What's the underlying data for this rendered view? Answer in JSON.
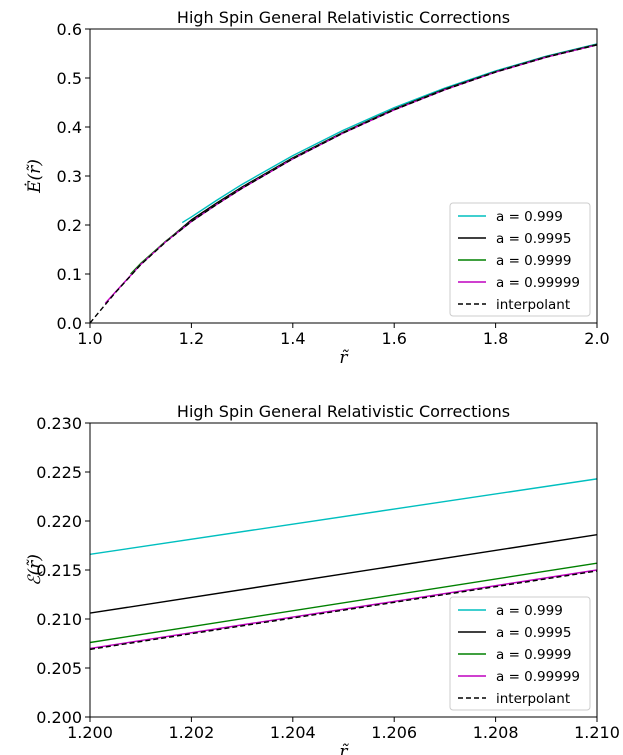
{
  "chart_data": [
    {
      "type": "line",
      "title": "High Spin General Relativistic Corrections",
      "xlabel": "r̃",
      "ylabel": "Ė(r̃)",
      "xlim": [
        1.0,
        2.0
      ],
      "ylim": [
        0.0,
        0.6
      ],
      "xticks": [
        1.0,
        1.2,
        1.4,
        1.6,
        1.8,
        2.0
      ],
      "yticks": [
        0.0,
        0.1,
        0.2,
        0.3,
        0.4,
        0.5,
        0.6
      ],
      "xtick_labels": [
        "1.0",
        "1.2",
        "1.4",
        "1.6",
        "1.8",
        "2.0"
      ],
      "ytick_labels": [
        "0.0",
        "0.1",
        "0.2",
        "0.3",
        "0.4",
        "0.5",
        "0.6"
      ],
      "legend_position": "lower-right",
      "grid": false,
      "series": [
        {
          "name": "a = 0.999",
          "color": "#00bfbf",
          "dash": "solid",
          "x": [
            1.182,
            1.2,
            1.25,
            1.3,
            1.4,
            1.5,
            1.6,
            1.7,
            1.8,
            1.9,
            2.0
          ],
          "y": [
            0.205,
            0.2165,
            0.2505,
            0.283,
            0.3415,
            0.3935,
            0.4395,
            0.4795,
            0.5145,
            0.5445,
            0.5695
          ]
        },
        {
          "name": "a = 0.9995",
          "color": "#000000",
          "dash": "solid",
          "x": [
            1.14,
            1.16,
            1.2,
            1.25,
            1.3,
            1.4,
            1.5,
            1.6,
            1.7,
            1.8,
            1.9,
            2.0
          ],
          "y": [
            0.158,
            0.1755,
            0.2105,
            0.245,
            0.2775,
            0.337,
            0.3895,
            0.4365,
            0.4775,
            0.513,
            0.5435,
            0.5685
          ]
        },
        {
          "name": "a = 0.9999",
          "color": "#008000",
          "dash": "solid",
          "x": [
            1.08,
            1.1,
            1.15,
            1.2,
            1.25,
            1.3,
            1.4,
            1.5,
            1.6,
            1.7,
            1.8,
            1.9,
            2.0
          ],
          "y": [
            0.1,
            0.1215,
            0.1675,
            0.2075,
            0.2425,
            0.2755,
            0.3355,
            0.3885,
            0.4355,
            0.4765,
            0.5125,
            0.543,
            0.568
          ]
        },
        {
          "name": "a = 0.99999",
          "color": "#bf00bf",
          "dash": "solid",
          "x": [
            1.03,
            1.05,
            1.1,
            1.15,
            1.2,
            1.25,
            1.3,
            1.4,
            1.5,
            1.6,
            1.7,
            1.8,
            1.9,
            2.0
          ],
          "y": [
            0.04,
            0.063,
            0.1195,
            0.1665,
            0.207,
            0.242,
            0.275,
            0.335,
            0.388,
            0.435,
            0.476,
            0.512,
            0.5425,
            0.5675
          ]
        },
        {
          "name": "interpolant",
          "color": "#000000",
          "dash": "dashed",
          "x": [
            1.0,
            1.02,
            1.05,
            1.1,
            1.15,
            1.2,
            1.25,
            1.3,
            1.4,
            1.5,
            1.6,
            1.7,
            1.8,
            1.9,
            2.0
          ],
          "y": [
            0.0,
            0.025,
            0.062,
            0.119,
            0.166,
            0.207,
            0.242,
            0.275,
            0.335,
            0.388,
            0.435,
            0.476,
            0.512,
            0.5425,
            0.5675
          ]
        }
      ]
    },
    {
      "type": "line",
      "title": "High Spin General Relativistic Corrections",
      "xlabel": "r̃",
      "ylabel": "ℰ(r̃)",
      "xlim": [
        1.2,
        1.21
      ],
      "ylim": [
        0.2,
        0.23
      ],
      "xticks": [
        1.2,
        1.202,
        1.204,
        1.206,
        1.208,
        1.21
      ],
      "yticks": [
        0.2,
        0.205,
        0.21,
        0.215,
        0.22,
        0.225,
        0.23
      ],
      "xtick_labels": [
        "1.200",
        "1.202",
        "1.204",
        "1.206",
        "1.208",
        "1.210"
      ],
      "ytick_labels": [
        "0.200",
        "0.205",
        "0.210",
        "0.215",
        "0.220",
        "0.225",
        "0.230"
      ],
      "legend_position": "lower-right",
      "grid": false,
      "series": [
        {
          "name": "a = 0.999",
          "color": "#00bfbf",
          "dash": "solid",
          "x": [
            1.2,
            1.21
          ],
          "y": [
            0.2166,
            0.2243
          ]
        },
        {
          "name": "a = 0.9995",
          "color": "#000000",
          "dash": "solid",
          "x": [
            1.2,
            1.21
          ],
          "y": [
            0.2106,
            0.2186
          ]
        },
        {
          "name": "a = 0.9999",
          "color": "#008000",
          "dash": "solid",
          "x": [
            1.2,
            1.21
          ],
          "y": [
            0.2076,
            0.2157
          ]
        },
        {
          "name": "a = 0.99999",
          "color": "#bf00bf",
          "dash": "solid",
          "x": [
            1.2,
            1.21
          ],
          "y": [
            0.207,
            0.215
          ]
        },
        {
          "name": "interpolant",
          "color": "#000000",
          "dash": "dashed",
          "x": [
            1.2,
            1.21
          ],
          "y": [
            0.2069,
            0.2149
          ]
        }
      ]
    }
  ]
}
